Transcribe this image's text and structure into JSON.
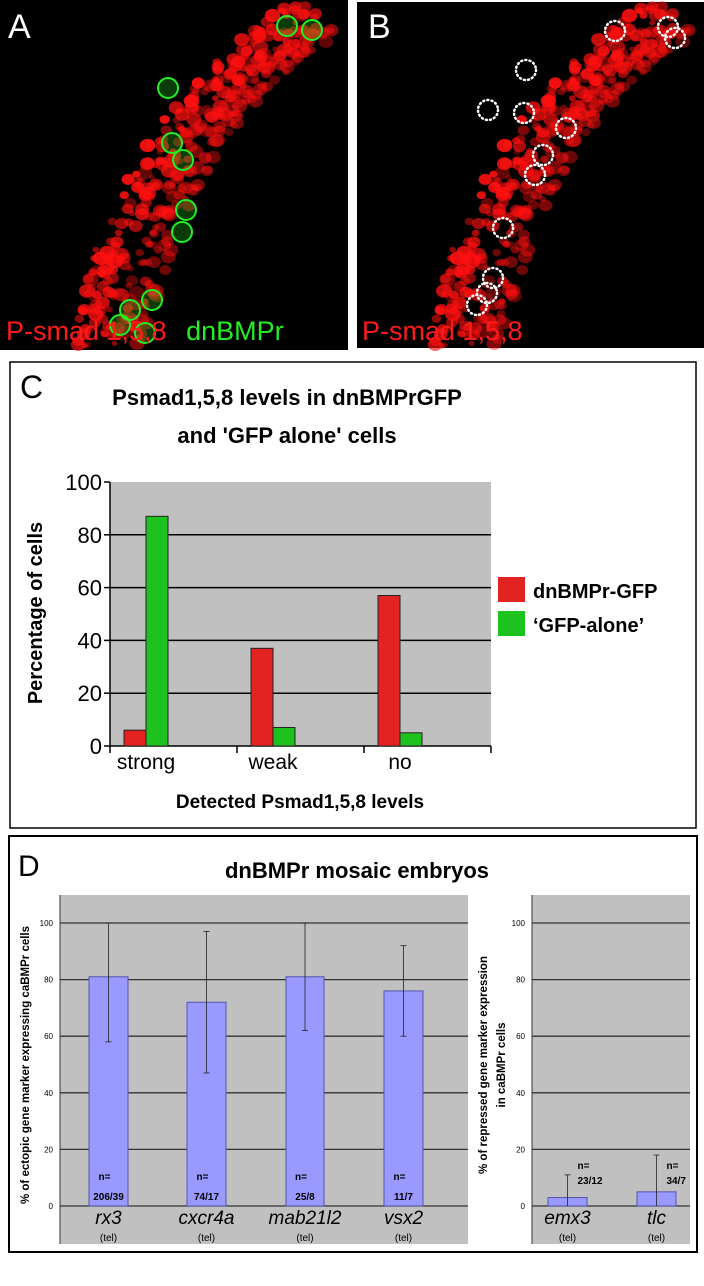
{
  "panel_a": {
    "letter": "A",
    "label_red": "P-smad 1,5,8",
    "label_green": "dnBMPr"
  },
  "panel_b": {
    "letter": "B",
    "label_red": "P-smad 1,5,8"
  },
  "colors": {
    "red_stain": "#ff1a1a",
    "green_stain": "#22ee22",
    "red_series": "#e32222",
    "green_series": "#1ec21e",
    "bar_blue": "#9999ff",
    "plot_bg": "#c0c0c0"
  },
  "chart_data": [
    {
      "panel": "C",
      "type": "bar",
      "title": [
        "Psmad1,5,8 levels in dnBMPrGFP",
        "and 'GFP alone' cells"
      ],
      "xlabel": "Detected Psmad1,5,8 levels",
      "ylabel": "Percentage of cells",
      "ylim": [
        0,
        100
      ],
      "yticks": [
        "0",
        "20",
        "40",
        "60",
        "80",
        "100"
      ],
      "categories": [
        "strong",
        "weak",
        "no"
      ],
      "series": [
        {
          "name": "dnBMPr-GFP",
          "color": "#e32222",
          "values": [
            6,
            37,
            57
          ]
        },
        {
          "name": "‘GFP-alone’",
          "color": "#1ec21e",
          "values": [
            87,
            7,
            5
          ]
        }
      ],
      "grid": true,
      "legend": "right"
    },
    {
      "panel": "D",
      "type": "bar",
      "title": "dnBMPr mosaic embryos",
      "subcharts": [
        {
          "ylabel": [
            "% of ectopic gene marker expressing caBMPr cells"
          ],
          "ylim": [
            0,
            110
          ],
          "yticks": [
            "0",
            "20",
            "40",
            "60",
            "80",
            "100"
          ],
          "categories": [
            "rx3",
            "cxcr4a",
            "mab21l2",
            "vsx2"
          ],
          "sublabels": [
            "(tel)",
            "(tel)",
            "(tel)",
            "(tel)"
          ],
          "values": [
            81,
            72,
            81,
            76
          ],
          "error_low": [
            58,
            47,
            62,
            60
          ],
          "error_high": [
            100,
            97,
            100,
            92
          ],
          "n_labels": [
            "206/39",
            "74/17",
            "25/8",
            "11/7"
          ],
          "n_prefix": "n=",
          "grid": true
        },
        {
          "ylabel": [
            "% of repressed gene marker expression",
            "in caBMPr cells"
          ],
          "ylim": [
            0,
            110
          ],
          "yticks": [
            "0",
            "20",
            "40",
            "60",
            "80",
            "100"
          ],
          "categories": [
            "emx3",
            "tlc"
          ],
          "sublabels": [
            "(tel)",
            "(tel)"
          ],
          "values": [
            3,
            5
          ],
          "error_low": [
            0,
            0
          ],
          "error_high": [
            11,
            18
          ],
          "n_labels": [
            "23/12",
            "34/7"
          ],
          "n_prefix": "n=",
          "grid": true
        }
      ]
    }
  ]
}
